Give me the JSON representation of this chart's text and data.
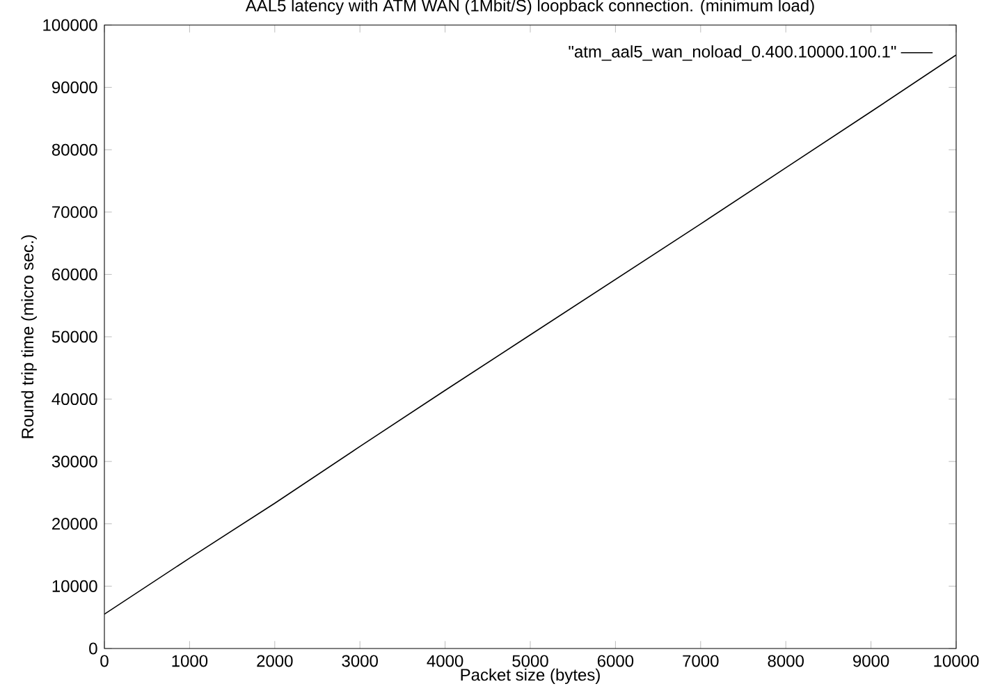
{
  "chart_data": {
    "type": "line",
    "title": "AAL5 latency with ATM WAN (1Mbit/S) loopback connection. (minimum load)",
    "xlabel": "Packet size (bytes)",
    "ylabel": "Round trip time (micro sec.)",
    "x": [
      0,
      1000,
      2000,
      3000,
      4000,
      5000,
      6000,
      7000,
      8000,
      9000,
      10000
    ],
    "series": [
      {
        "name": "\"atm_aal5_wan_noload_0.400.10000.100.1\"",
        "color": "#000000",
        "values": [
          5500,
          14500,
          23300,
          32400,
          41400,
          50300,
          59200,
          68100,
          77100,
          86100,
          95200
        ]
      }
    ],
    "xlim": [
      0,
      10000
    ],
    "ylim": [
      0,
      100000
    ],
    "xticks": [
      0,
      1000,
      2000,
      3000,
      4000,
      5000,
      6000,
      7000,
      8000,
      9000,
      10000
    ],
    "yticks": [
      0,
      10000,
      20000,
      30000,
      40000,
      50000,
      60000,
      70000,
      80000,
      90000,
      100000
    ],
    "legend": "top right",
    "grid": false,
    "marker": "none",
    "line_style": "solid"
  }
}
